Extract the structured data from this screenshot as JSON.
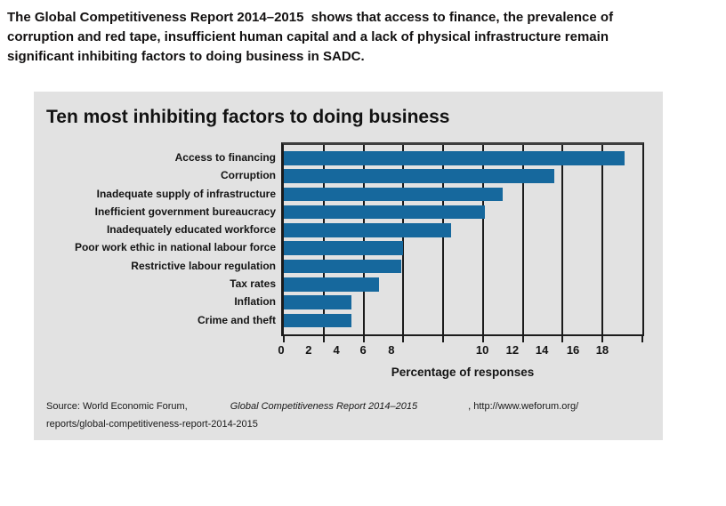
{
  "page": {
    "background": "#ffffff"
  },
  "header": {
    "lines": [
      "The Global Competitiveness Report 2014–2015  shows that access to finance, the prevalence of",
      "corruption and red tape, insufficient human capital and a lack of physical infrastructure remain",
      "significant inhibiting factors to doing business in SADC."
    ]
  },
  "chart_data": {
    "type": "bar",
    "orientation": "horizontal",
    "title": "Ten most inhibiting factors to doing business",
    "categories": [
      "Access to financing",
      "Corruption",
      "Inadequate supply of infrastructure",
      "Inefficient government bureaucracy",
      "Inadequately educated workforce",
      "Poor work ethic in national labour force",
      "Restrictive labour regulation",
      "Tax rates",
      "Inflation",
      "Crime and theft"
    ],
    "values": [
      17.1,
      13.6,
      11.0,
      10.1,
      8.4,
      6.0,
      5.9,
      4.8,
      3.4,
      3.4
    ],
    "xlabel": "Percentage of responses",
    "ylabel": "",
    "xlim": [
      0,
      18
    ],
    "xticks": [
      0,
      2,
      4,
      6,
      8,
      10,
      12,
      14,
      16,
      18
    ],
    "grid": true,
    "legend": false,
    "bar_color": "#16689d",
    "layout": {
      "tick_label_offsets_pct": [
        0,
        7.6,
        15.3,
        22.7,
        30.5,
        55.7,
        64.0,
        72.2,
        80.8,
        88.9
      ]
    }
  },
  "source": {
    "prefix": "Source: World Economic Forum,",
    "report_title": "Global Competitiveness Report 2014–2015",
    "url_suffix": ", http://www.weforum.org/",
    "line2": "reports/global-competitiveness-report-2014-2015"
  },
  "colors": {
    "panel_bg": "#e2e2e2",
    "bar": "#16689d",
    "grid": "#1b1b1b",
    "text": "#121212"
  }
}
